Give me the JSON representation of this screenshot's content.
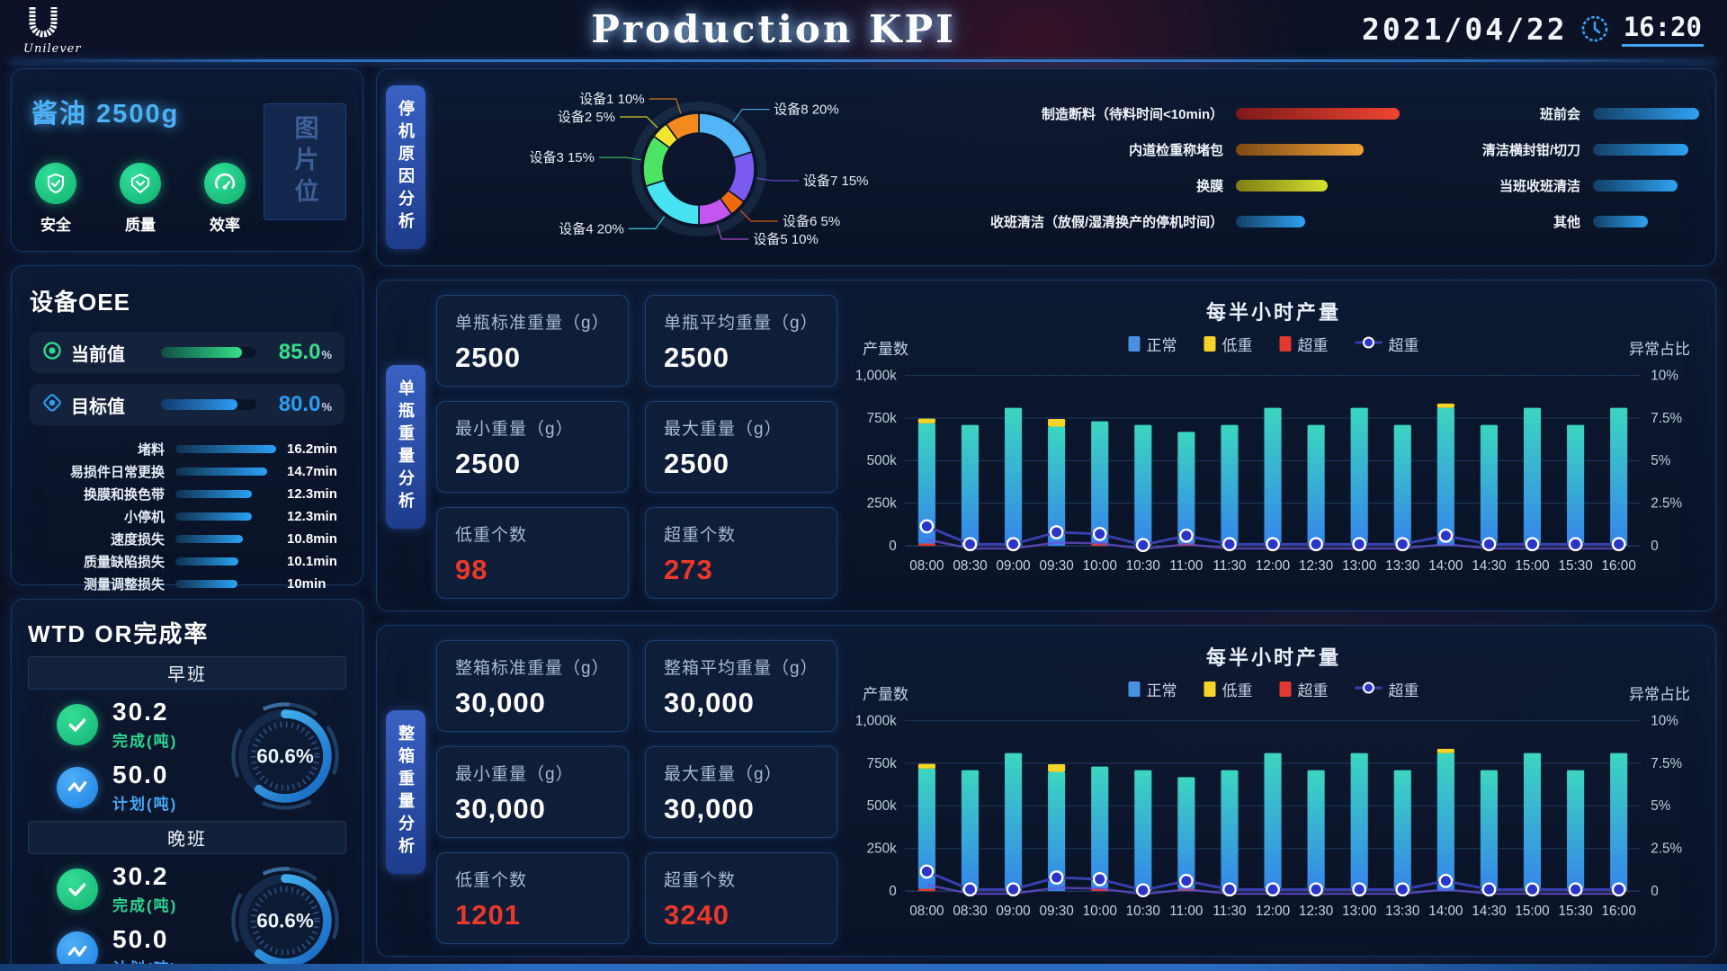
{
  "header": {
    "brand": "Unilever",
    "title": "Production KPI",
    "date": "2021/04/22",
    "time": "16:20"
  },
  "product": {
    "name": "酱油 2500g",
    "image_placeholder": "图片位",
    "icons": [
      {
        "icon": "shield-check-icon",
        "label": "安全"
      },
      {
        "icon": "quality-badge-icon",
        "label": "质量"
      },
      {
        "icon": "gauge-icon",
        "label": "效率"
      }
    ]
  },
  "oee": {
    "title": "设备OEE",
    "current": {
      "label": "当前值",
      "value": "85.0",
      "unit": "%",
      "pct": 85,
      "color": "#35e08a",
      "grad": [
        "#0e4d46",
        "#35e08a"
      ]
    },
    "target": {
      "label": "目标值",
      "value": "80.0",
      "unit": "%",
      "pct": 80,
      "color": "#2d9cf4",
      "grad": [
        "#123a6e",
        "#2d9cf4"
      ]
    },
    "losses": [
      {
        "label": "堵料",
        "value": "16.2min",
        "v": 16.2
      },
      {
        "label": "易损件日常更换",
        "value": "14.7min",
        "v": 14.7
      },
      {
        "label": "换膜和换色带",
        "value": "12.3min",
        "v": 12.3
      },
      {
        "label": "小停机",
        "value": "12.3min",
        "v": 12.3
      },
      {
        "label": "速度损失",
        "value": "10.8min",
        "v": 10.8
      },
      {
        "label": "质量缺陷损失",
        "value": "10.1min",
        "v": 10.1
      },
      {
        "label": "测量调整损失",
        "value": "10min",
        "v": 10.0
      }
    ]
  },
  "wtd": {
    "title": "WTD OR完成率",
    "shifts": [
      {
        "name": "早班",
        "rows": [
          {
            "icon": "check",
            "value": "30.2",
            "label": "完成(吨)",
            "color": "#2fd68f"
          },
          {
            "icon": "plan",
            "value": "50.0",
            "label": "计划(吨)",
            "color": "#46a8f7"
          }
        ],
        "gauge_text": "60.6%",
        "gauge_pct": 60.6
      },
      {
        "name": "晚班",
        "rows": [
          {
            "icon": "check",
            "value": "30.2",
            "label": "完成(吨)",
            "color": "#2fd68f"
          },
          {
            "icon": "plan",
            "value": "50.0",
            "label": "计划(吨)",
            "color": "#46a8f7"
          }
        ],
        "gauge_text": "60.6%",
        "gauge_pct": 60.6
      }
    ]
  },
  "downtime": {
    "tab": "停机原因分析"
  },
  "single": {
    "tab": "单瓶重量分析",
    "cards": [
      {
        "label": "单瓶标准重量（g）",
        "value": "2500"
      },
      {
        "label": "单瓶平均重量（g）",
        "value": "2500"
      },
      {
        "label": "最小重量（g）",
        "value": "2500"
      },
      {
        "label": "最大重量（g）",
        "value": "2500"
      },
      {
        "label": "低重个数",
        "value": "98",
        "alert": true
      },
      {
        "label": "超重个数",
        "value": "273",
        "alert": true
      }
    ]
  },
  "box": {
    "tab": "整箱重量分析",
    "cards": [
      {
        "label": "整箱标准重量（g）",
        "value": "30,000"
      },
      {
        "label": "整箱平均重量（g）",
        "value": "30,000"
      },
      {
        "label": "最小重量（g）",
        "value": "30,000"
      },
      {
        "label": "最大重量（g）",
        "value": "30,000"
      },
      {
        "label": "低重个数",
        "value": "1201",
        "alert": true
      },
      {
        "label": "超重个数",
        "value": "3240",
        "alert": true
      }
    ]
  },
  "chart_data": [
    {
      "id": "downtime-pie",
      "type": "pie",
      "title": "停机原因分析",
      "start": "top",
      "direction": "clockwise",
      "slices": [
        {
          "label": "设备8",
          "value": 20,
          "color": "#52b5f5"
        },
        {
          "label": "设备7",
          "value": 15,
          "color": "#7a5af0"
        },
        {
          "label": "设备6",
          "value": 5,
          "color": "#ee6a10"
        },
        {
          "label": "设备5",
          "value": 10,
          "color": "#c455ef"
        },
        {
          "label": "设备4",
          "value": 20,
          "color": "#47e3f2"
        },
        {
          "label": "设备3",
          "value": 15,
          "color": "#4de463"
        },
        {
          "label": "设备2",
          "value": 5,
          "color": "#f2e530"
        },
        {
          "label": "设备1",
          "value": 10,
          "color": "#f28a1d"
        }
      ]
    },
    {
      "id": "downtime-bars",
      "type": "bar",
      "orientation": "horizontal",
      "groups": [
        {
          "items": [
            {
              "label": "制造断料（待料时间<10min）",
              "pct": 100,
              "colors": [
                "#7d1a1a",
                "#f04430"
              ]
            },
            {
              "label": "内道检重称堵包",
              "pct": 78,
              "colors": [
                "#7d4a14",
                "#f0a238"
              ]
            },
            {
              "label": "换膜",
              "pct": 56,
              "colors": [
                "#7d7d14",
                "#d6e22e"
              ]
            },
            {
              "label": "收班清洁（放假/湿清换产的停机时间）",
              "pct": 42,
              "colors": [
                "#123f66",
                "#30a2f2"
              ]
            }
          ]
        },
        {
          "items": [
            {
              "label": "班前会",
              "pct": 100,
              "colors": [
                "#123f66",
                "#30a2f2"
              ]
            },
            {
              "label": "清洁横封钳/切刀",
              "pct": 90,
              "colors": [
                "#123f66",
                "#30a2f2"
              ]
            },
            {
              "label": "当班收班清洁",
              "pct": 80,
              "colors": [
                "#123f66",
                "#30a2f2"
              ]
            },
            {
              "label": "其他",
              "pct": 52,
              "colors": [
                "#123f66",
                "#30a2f2"
              ]
            }
          ]
        }
      ]
    },
    {
      "id": "single-output",
      "type": "bar+line",
      "title": "每半小时产量",
      "ylabel_left": "产量数",
      "ylabel_right": "异常占比",
      "categories": [
        "08:00",
        "08:30",
        "09:00",
        "09:30",
        "10:00",
        "10:30",
        "11:00",
        "11:30",
        "12:00",
        "12:30",
        "13:00",
        "13:30",
        "14:00",
        "14:30",
        "15:00",
        "15:30",
        "16:00"
      ],
      "ylim_left": [
        0,
        1000
      ],
      "yticks_left": [
        "0",
        "250k",
        "500k",
        "750k",
        "1,000k"
      ],
      "ylim_right": [
        0,
        10
      ],
      "yticks_right": [
        "0",
        "2.5%",
        "5%",
        "7.5%",
        "10%"
      ],
      "series": [
        {
          "name": "正常",
          "type": "bar",
          "stack": 2,
          "color": "#4a90e2",
          "gradient": [
            "#3bd6c0",
            "#3685ea"
          ],
          "values": [
            705,
            710,
            810,
            700,
            715,
            710,
            655,
            710,
            810,
            710,
            810,
            710,
            810,
            710,
            810,
            710,
            810
          ]
        },
        {
          "name": "低重",
          "type": "bar",
          "stack": 3,
          "color": "#f5d327",
          "values": [
            28,
            0,
            0,
            45,
            0,
            0,
            0,
            0,
            0,
            0,
            0,
            0,
            25,
            0,
            0,
            0,
            0
          ]
        },
        {
          "name": "超重",
          "type": "bar",
          "stack": 1,
          "color": "#e0392e",
          "values": [
            14,
            0,
            0,
            0,
            16,
            0,
            14,
            0,
            0,
            0,
            0,
            0,
            0,
            0,
            0,
            0,
            0
          ]
        },
        {
          "name": "超重",
          "type": "line",
          "axis": "right",
          "color": "#383fae",
          "echo_color": "#6b50d6",
          "values": [
            1.15,
            0.1,
            0.1,
            0.8,
            0.7,
            0.05,
            0.6,
            0.1,
            0.1,
            0.1,
            0.1,
            0.1,
            0.6,
            0.1,
            0.1,
            0.1,
            0.1
          ]
        }
      ]
    },
    {
      "id": "box-output",
      "type": "bar+line",
      "title": "每半小时产量",
      "ylabel_left": "产量数",
      "ylabel_right": "异常占比",
      "categories": [
        "08:00",
        "08:30",
        "09:00",
        "09:30",
        "10:00",
        "10:30",
        "11:00",
        "11:30",
        "12:00",
        "12:30",
        "13:00",
        "13:30",
        "14:00",
        "14:30",
        "15:00",
        "15:30",
        "16:00"
      ],
      "ylim_left": [
        0,
        1000
      ],
      "yticks_left": [
        "0",
        "250k",
        "500k",
        "750k",
        "1,000k"
      ],
      "ylim_right": [
        0,
        10
      ],
      "yticks_right": [
        "0",
        "2.5%",
        "5%",
        "7.5%",
        "10%"
      ],
      "series": [
        {
          "name": "正常",
          "type": "bar",
          "stack": 2,
          "color": "#4a90e2",
          "gradient": [
            "#3bd6c0",
            "#3685ea"
          ],
          "values": [
            705,
            710,
            810,
            700,
            715,
            710,
            655,
            710,
            810,
            710,
            810,
            710,
            810,
            710,
            810,
            710,
            810
          ]
        },
        {
          "name": "低重",
          "type": "bar",
          "stack": 3,
          "color": "#f5d327",
          "values": [
            28,
            0,
            0,
            45,
            0,
            0,
            0,
            0,
            0,
            0,
            0,
            0,
            25,
            0,
            0,
            0,
            0
          ]
        },
        {
          "name": "超重",
          "type": "bar",
          "stack": 1,
          "color": "#e0392e",
          "values": [
            14,
            0,
            0,
            0,
            16,
            0,
            14,
            0,
            0,
            0,
            0,
            0,
            0,
            0,
            0,
            0,
            0
          ]
        },
        {
          "name": "超重",
          "type": "line",
          "axis": "right",
          "color": "#383fae",
          "echo_color": "#6b50d6",
          "values": [
            1.15,
            0.1,
            0.1,
            0.8,
            0.7,
            0.05,
            0.6,
            0.1,
            0.1,
            0.1,
            0.1,
            0.1,
            0.6,
            0.1,
            0.1,
            0.1,
            0.1
          ]
        }
      ]
    }
  ]
}
